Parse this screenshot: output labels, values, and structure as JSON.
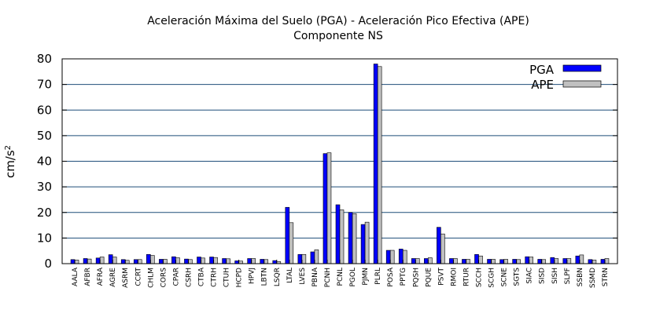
{
  "chart_data": {
    "type": "bar",
    "title": "Aceleración Máxima del Suelo (PGA) -   Aceleración Pico Efectiva (APE)",
    "subtitle": "Componente NS",
    "ylabel": "cm/s",
    "ylabel_superscript": "2",
    "xlabel": "",
    "ylim": [
      0,
      80
    ],
    "yticks": [
      0,
      10,
      20,
      30,
      40,
      50,
      60,
      70,
      80
    ],
    "grid": "horizontal",
    "legend_position": "top-right",
    "categories": [
      "AALA",
      "AFBR",
      "AFRA",
      "AGRE",
      "ASRM",
      "CCRT",
      "CHLM",
      "CORS",
      "CPAR",
      "CSRH",
      "CTBA",
      "CTRH",
      "CTUH",
      "HCPD",
      "HPVJ",
      "LBTN",
      "LSQR",
      "LTAL",
      "LVES",
      "PBNA",
      "PCNH",
      "PCNL",
      "PGOL",
      "PJMN",
      "PLRL",
      "POSA",
      "PPTG",
      "PQSH",
      "PQUE",
      "PSVT",
      "RMOI",
      "RTUR",
      "SCCH",
      "SCGH",
      "SCNE",
      "SGTS",
      "SIAC",
      "SISD",
      "SISH",
      "SLPF",
      "SSBN",
      "SSMD",
      "STRN"
    ],
    "series": [
      {
        "name": "PGA",
        "color": "#0000ff",
        "values": [
          1.6,
          2.0,
          2.2,
          3.5,
          1.6,
          1.6,
          3.6,
          1.7,
          2.7,
          1.8,
          2.6,
          2.6,
          2.0,
          1.1,
          2.0,
          1.7,
          1.2,
          22.0,
          3.6,
          4.6,
          43.0,
          23.0,
          20.0,
          15.3,
          78.0,
          5.2,
          5.7,
          2.0,
          2.0,
          14.2,
          2.0,
          1.7,
          3.6,
          1.7,
          1.6,
          1.7,
          2.7,
          1.7,
          2.4,
          2.0,
          3.0,
          1.6,
          1.7
        ]
      },
      {
        "name": "APE",
        "color": "#c0c0c0",
        "values": [
          1.4,
          1.8,
          2.6,
          2.6,
          1.3,
          1.6,
          3.2,
          1.7,
          2.3,
          1.6,
          2.2,
          2.4,
          1.9,
          1.0,
          2.0,
          1.6,
          0.8,
          16.0,
          3.6,
          5.4,
          43.3,
          21.0,
          19.5,
          16.2,
          77.0,
          5.2,
          5.2,
          2.0,
          2.3,
          11.6,
          2.0,
          1.7,
          3.0,
          1.7,
          1.7,
          1.6,
          2.6,
          1.6,
          2.0,
          2.0,
          3.4,
          1.4,
          2.0
        ]
      }
    ]
  }
}
